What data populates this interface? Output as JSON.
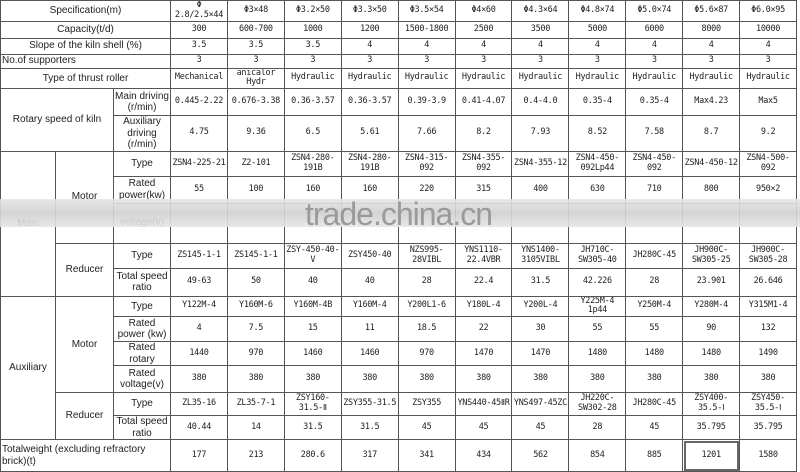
{
  "columns": [
    "Φ 2.8/2.5×44",
    "Φ3×48",
    "Φ3.2×50",
    "Φ3.3×50",
    "Φ3.5×54",
    "Φ4×60",
    "Φ4.3×64",
    "Φ4.8×74",
    "Φ5.0×74",
    "Φ5.6×87",
    "Φ6.0×95"
  ],
  "header_label": "Specification(m)",
  "general_rows": [
    {
      "label": "Capacity(t/d)",
      "values": [
        "300",
        "600-700",
        "1000",
        "1200",
        "1500-1800",
        "2500",
        "3500",
        "5000",
        "6000",
        "8000",
        "10000"
      ]
    },
    {
      "label": "Slope of the kiln shell (%)",
      "values": [
        "3.5",
        "3.5",
        "3.5",
        "4",
        "4",
        "4",
        "4",
        "4",
        "4",
        "4",
        "4"
      ]
    },
    {
      "label": "No.of supporters",
      "values": [
        "3",
        "3",
        "3",
        "3",
        "3",
        "3",
        "3",
        "3",
        "3",
        "3",
        "3"
      ]
    },
    {
      "label": "Type of thrust roller",
      "values": [
        "Mechanical",
        "anicalor Hydr",
        "Hydraulic",
        "Hydraulic",
        "Hydraulic",
        "Hydraulic",
        "Hydraulic",
        "Hydraulic",
        "Hydraulic",
        "Hydraulic",
        "Hydraulic"
      ]
    }
  ],
  "rotary_speed": {
    "label": "Rotary speed of kiln",
    "rows": [
      {
        "label": "Main driving (r/min)",
        "values": [
          "0.445-2.22",
          "0.676-3.38",
          "0.36-3.57",
          "0.36-3.57",
          "0.39-3.9",
          "0.41-4.07",
          "0.4-4.0",
          "0.35-4",
          "0.35-4",
          "Max4.23",
          "Max5"
        ]
      },
      {
        "label": "Auxiliary driving (r/min)",
        "values": [
          "4.75",
          "9.36",
          "6.5",
          "5.61",
          "7.66",
          "8.2",
          "7.93",
          "8.52",
          "7.58",
          "8.7",
          "9.2"
        ]
      }
    ]
  },
  "main": {
    "label": "Main",
    "motor": {
      "label": "Motor",
      "rows": [
        {
          "label": "Type",
          "values": [
            "ZSN4-225-21",
            "Z2-101",
            "ZSN4-280-191B",
            "ZSN4-280-191B",
            "ZSN4-315-092",
            "ZSN4-355-092",
            "ZSN4-355-12",
            "ZSN4-450-092Lp44",
            "ZSN4-450-092",
            "ZSN4-450-12",
            "ZSN4-500-092"
          ]
        },
        {
          "label": "Rated power(kw)",
          "values": [
            "55",
            "100",
            "160",
            "160",
            "220",
            "315",
            "400",
            "630",
            "710",
            "800",
            "950×2"
          ]
        },
        {
          "label": "voltage(v)",
          "values": [
            "",
            "",
            "",
            "",
            "",
            "",
            "",
            "",
            "",
            "",
            ""
          ]
        }
      ]
    },
    "reducer": {
      "label": "Reducer",
      "rows": [
        {
          "label": "Type",
          "values": [
            "ZS145-1-1",
            "ZS145-1-1",
            "ZSY-450-40-V",
            "ZSY450-40",
            "NZS995-28VIBL",
            "YNS1110-22.4VBR",
            "YNS1400-3105VIBL",
            "JH710C-SW305-40",
            "JH280C-45",
            "JH900C-SW305-25",
            "JH900C-SW305-28"
          ]
        },
        {
          "label": "Total speed ratio",
          "values": [
            "49-63",
            "50",
            "40",
            "40",
            "28",
            "22.4",
            "31.5",
            "42.226",
            "28",
            "23.901",
            "26.646"
          ]
        }
      ]
    }
  },
  "auxiliary": {
    "label": "Auxiliary",
    "motor": {
      "label": "Motor",
      "rows": [
        {
          "label": "Type",
          "values": [
            "Y122M-4",
            "Y160M-6",
            "Y160M-4B",
            "Y160M-4",
            "Y200L1-6",
            "Y180L-4",
            "Y200L-4",
            "Y225M-4 1p44",
            "Y250M-4",
            "Y280M-4",
            "Y315M1-4"
          ]
        },
        {
          "label": "Rated power (kw)",
          "values": [
            "4",
            "7.5",
            "15",
            "11",
            "18.5",
            "22",
            "30",
            "55",
            "55",
            "90",
            "132"
          ]
        },
        {
          "label": "Rated rotary",
          "values": [
            "1440",
            "970",
            "1460",
            "1460",
            "970",
            "1470",
            "1470",
            "1480",
            "1480",
            "1480",
            "1490"
          ]
        },
        {
          "label": "Rated voltage(v)",
          "values": [
            "380",
            "380",
            "380",
            "380",
            "380",
            "380",
            "380",
            "380",
            "380",
            "380",
            "380"
          ]
        }
      ]
    },
    "reducer": {
      "label": "Reducer",
      "rows": [
        {
          "label": "Type",
          "values": [
            "ZL35-16",
            "ZL35-7-1",
            "ZSY160-31.5-Ⅱ",
            "ZSY355-31.5",
            "ZSY355",
            "YNS440-45ⅡR",
            "YNS497-45ZC",
            "JH220C-SW302-28",
            "JH280C-45",
            "ZSY400-35.5-Ⅰ",
            "ZSY450-35.5-Ⅰ"
          ]
        },
        {
          "label": "Total speed ratio",
          "values": [
            "40.44",
            "14",
            "31.5",
            "31.5",
            "45",
            "45",
            "45",
            "28",
            "45",
            "35.795",
            "35.795"
          ]
        }
      ]
    }
  },
  "total_weight": {
    "label": "Totalweight (excluding refractory brick)(t)",
    "values": [
      "177",
      "213",
      "280.6",
      "317",
      "341",
      "434",
      "562",
      "854",
      "885",
      "1201",
      "1580"
    ]
  },
  "watermark": "trade.china.cn"
}
